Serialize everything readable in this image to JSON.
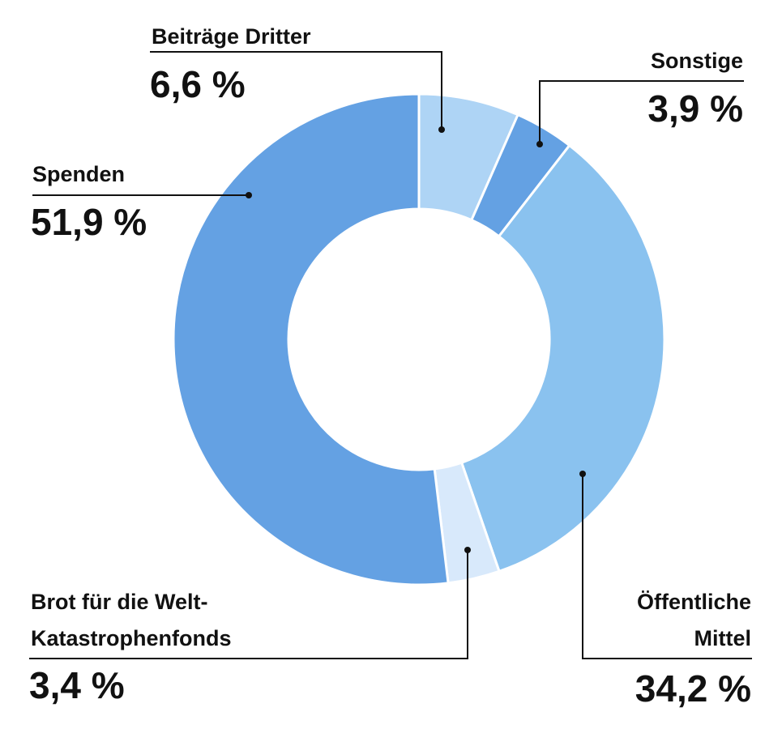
{
  "chart_data": {
    "type": "pie",
    "donut": true,
    "title": "",
    "slices": [
      {
        "label": "Beiträge Dritter",
        "value": 6.6,
        "value_label": "6,6 %",
        "color": "#aed4f5"
      },
      {
        "label": "Sonstige",
        "value": 3.9,
        "value_label": "3,9 %",
        "color": "#64a1e3"
      },
      {
        "label": "Öffentliche Mittel",
        "value": 34.2,
        "value_label": "34,2 %",
        "color": "#8ac2ef"
      },
      {
        "label": "Brot für die Welt-Katastrophenfonds",
        "value": 3.4,
        "value_label": "3,4 %",
        "color": "#d8e9fb"
      },
      {
        "label": "Spenden",
        "value": 51.9,
        "value_label": "51,9 %",
        "color": "#64a1e3"
      }
    ]
  },
  "labels": {
    "beitraege": {
      "line1": "Beiträge Dritter",
      "value": "6,6 %"
    },
    "sonstige": {
      "line1": "Sonstige",
      "value": "3,9 %"
    },
    "oeffentliche": {
      "line1": "Öffentliche",
      "line2": "Mittel",
      "value": "34,2 %"
    },
    "brot": {
      "line1": "Brot für die Welt-",
      "line2": "Katastrophenfonds",
      "value": "3,4 %"
    },
    "spenden": {
      "line1": "Spenden",
      "value": "51,9 %"
    }
  }
}
